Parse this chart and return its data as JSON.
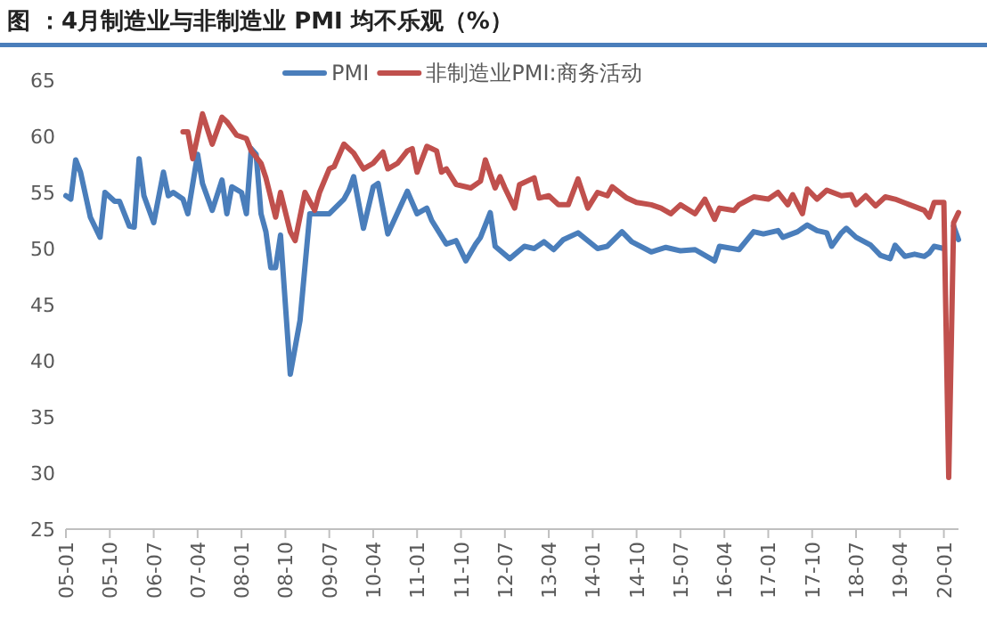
{
  "chart_data": {
    "type": "line",
    "title": "图 ：4月制造业与非制造业 PMI 均不乐观（%）",
    "xlim": [
      "2005-01",
      "2020-04"
    ],
    "xticks": [
      {
        "value": "2005-01",
        "label": "05-01"
      },
      {
        "value": "2005-10",
        "label": "05-10"
      },
      {
        "value": "2006-07",
        "label": "06-07"
      },
      {
        "value": "2007-04",
        "label": "07-04"
      },
      {
        "value": "2008-01",
        "label": "08-01"
      },
      {
        "value": "2008-10",
        "label": "08-10"
      },
      {
        "value": "2009-07",
        "label": "09-07"
      },
      {
        "value": "2010-04",
        "label": "10-04"
      },
      {
        "value": "2011-01",
        "label": "11-01"
      },
      {
        "value": "2011-10",
        "label": "11-10"
      },
      {
        "value": "2012-07",
        "label": "12-07"
      },
      {
        "value": "2013-04",
        "label": "13-04"
      },
      {
        "value": "2014-01",
        "label": "14-01"
      },
      {
        "value": "2014-10",
        "label": "14-10"
      },
      {
        "value": "2015-07",
        "label": "15-07"
      },
      {
        "value": "2016-04",
        "label": "16-04"
      },
      {
        "value": "2017-01",
        "label": "17-01"
      },
      {
        "value": "2017-10",
        "label": "17-10"
      },
      {
        "value": "2018-07",
        "label": "18-07"
      },
      {
        "value": "2019-04",
        "label": "19-04"
      },
      {
        "value": "2020-01",
        "label": "20-01"
      }
    ],
    "ylim": [
      25,
      65
    ],
    "yticks": [
      25,
      30,
      35,
      40,
      45,
      50,
      55,
      60,
      65
    ],
    "grid": false,
    "legend": "top",
    "marker": "none",
    "line_style": "solid",
    "series": [
      {
        "name": "PMI",
        "color": "#4a7ebb",
        "x": [
          "2005-01",
          "2005-02",
          "2005-03",
          "2005-04",
          "2005-06",
          "2005-08",
          "2005-09",
          "2005-11",
          "2005-12",
          "2006-02",
          "2006-03",
          "2006-04",
          "2006-05",
          "2006-07",
          "2006-09",
          "2006-10",
          "2006-11",
          "2007-01",
          "2007-02",
          "2007-04",
          "2007-05",
          "2007-07",
          "2007-09",
          "2007-10",
          "2007-11",
          "2008-01",
          "2008-02",
          "2008-03",
          "2008-04",
          "2008-05",
          "2008-06",
          "2008-07",
          "2008-08",
          "2008-09",
          "2008-11",
          "2009-01",
          "2009-03",
          "2009-05",
          "2009-07",
          "2009-10",
          "2009-11",
          "2009-12",
          "2010-02",
          "2010-04",
          "2010-05",
          "2010-07",
          "2010-11",
          "2011-01",
          "2011-03",
          "2011-04",
          "2011-07",
          "2011-09",
          "2011-11",
          "2012-01",
          "2012-02",
          "2012-04",
          "2012-05",
          "2012-08",
          "2012-11",
          "2013-01",
          "2013-03",
          "2013-05",
          "2013-07",
          "2013-10",
          "2014-02",
          "2014-04",
          "2014-07",
          "2014-09",
          "2015-01",
          "2015-04",
          "2015-07",
          "2015-10",
          "2016-02",
          "2016-03",
          "2016-07",
          "2016-10",
          "2016-12",
          "2017-03",
          "2017-04",
          "2017-07",
          "2017-09",
          "2017-11",
          "2018-01",
          "2018-02",
          "2018-04",
          "2018-05",
          "2018-07",
          "2018-10",
          "2018-12",
          "2019-02",
          "2019-03",
          "2019-05",
          "2019-07",
          "2019-09",
          "2019-10",
          "2019-11",
          "2020-01",
          "2020-02",
          "2020-03",
          "2020-04"
        ],
        "values": [
          54.7,
          54.4,
          57.9,
          56.8,
          52.8,
          51.0,
          55.0,
          54.2,
          54.2,
          52.0,
          51.9,
          58.0,
          54.7,
          52.3,
          56.8,
          54.7,
          55.0,
          54.4,
          53.1,
          58.4,
          55.8,
          53.4,
          56.1,
          53.1,
          55.5,
          55.0,
          53.1,
          58.9,
          58.4,
          53.1,
          51.5,
          48.3,
          48.3,
          51.2,
          38.8,
          43.6,
          53.1,
          53.1,
          53.1,
          54.4,
          55.2,
          56.4,
          51.8,
          55.5,
          55.8,
          51.3,
          55.1,
          53.1,
          53.6,
          52.5,
          50.4,
          50.7,
          48.9,
          50.4,
          51.0,
          53.2,
          50.2,
          49.1,
          50.2,
          50.0,
          50.6,
          49.9,
          50.8,
          51.4,
          50.0,
          50.2,
          51.5,
          50.6,
          49.7,
          50.1,
          49.8,
          49.9,
          48.9,
          50.2,
          49.9,
          51.5,
          51.3,
          51.6,
          51.0,
          51.5,
          52.1,
          51.6,
          51.4,
          50.2,
          51.4,
          51.8,
          51.0,
          50.3,
          49.4,
          49.1,
          50.3,
          49.3,
          49.5,
          49.3,
          49.6,
          50.2,
          50.0,
          null,
          52.0,
          50.8
        ]
      },
      {
        "name": "非制造业PMI:商务活动",
        "color": "#c0504d",
        "x": [
          "2007-01",
          "2007-02",
          "2007-03",
          "2007-05",
          "2007-07",
          "2007-09",
          "2007-10",
          "2007-12",
          "2008-02",
          "2008-03",
          "2008-05",
          "2008-06",
          "2008-08",
          "2008-09",
          "2008-11",
          "2008-12",
          "2009-02",
          "2009-04",
          "2009-05",
          "2009-07",
          "2009-08",
          "2009-10",
          "2009-12",
          "2010-02",
          "2010-04",
          "2010-06",
          "2010-07",
          "2010-09",
          "2010-11",
          "2010-12",
          "2011-01",
          "2011-03",
          "2011-05",
          "2011-06",
          "2011-07",
          "2011-09",
          "2011-12",
          "2012-02",
          "2012-03",
          "2012-05",
          "2012-06",
          "2012-07",
          "2012-09",
          "2012-10",
          "2013-01",
          "2013-02",
          "2013-04",
          "2013-06",
          "2013-08",
          "2013-10",
          "2013-12",
          "2014-02",
          "2014-04",
          "2014-05",
          "2014-08",
          "2014-10",
          "2015-01",
          "2015-03",
          "2015-05",
          "2015-07",
          "2015-10",
          "2015-12",
          "2016-02",
          "2016-03",
          "2016-06",
          "2016-07",
          "2016-10",
          "2017-01",
          "2017-03",
          "2017-05",
          "2017-06",
          "2017-08",
          "2017-09",
          "2017-11",
          "2018-01",
          "2018-04",
          "2018-06",
          "2018-07",
          "2018-09",
          "2018-11",
          "2019-01",
          "2019-03",
          "2019-06",
          "2019-09",
          "2019-10",
          "2019-11",
          "2020-01",
          "2020-02",
          "2020-03",
          "2020-04"
        ],
        "values": [
          60.4,
          60.4,
          58.0,
          62.0,
          59.3,
          61.7,
          61.3,
          60.1,
          59.8,
          58.7,
          57.6,
          56.3,
          52.8,
          55.0,
          51.5,
          50.7,
          55.0,
          53.4,
          55.0,
          57.1,
          57.3,
          59.3,
          58.5,
          57.1,
          57.6,
          58.6,
          57.1,
          57.6,
          58.7,
          58.9,
          56.8,
          59.1,
          58.7,
          56.8,
          57.1,
          55.7,
          55.4,
          56.0,
          57.9,
          55.4,
          56.4,
          55.4,
          53.6,
          55.7,
          56.3,
          54.5,
          54.7,
          53.9,
          53.9,
          56.2,
          53.6,
          55.0,
          54.7,
          55.5,
          54.5,
          54.1,
          53.9,
          53.6,
          53.1,
          53.9,
          53.1,
          54.4,
          52.6,
          53.6,
          53.4,
          53.9,
          54.6,
          54.4,
          55.0,
          53.9,
          54.8,
          53.1,
          55.3,
          54.4,
          55.2,
          54.7,
          54.8,
          53.9,
          54.7,
          53.8,
          54.6,
          54.4,
          53.9,
          53.4,
          52.8,
          54.1,
          54.1,
          29.6,
          52.3,
          53.2
        ]
      }
    ]
  }
}
